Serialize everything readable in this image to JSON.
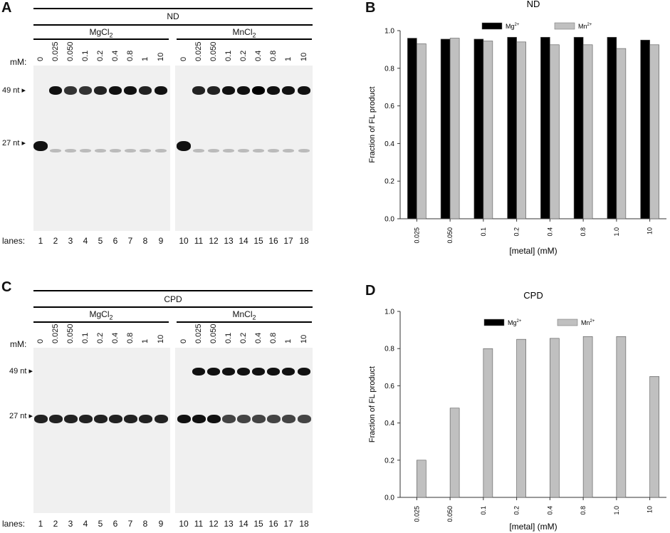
{
  "panels": {
    "A": {
      "letter": "A",
      "title": "ND",
      "group_left": "MgCl",
      "group_right": "MnCl",
      "sub": "2",
      "mm_label": "mM:",
      "concentrations_left": [
        "0",
        "0.025",
        "0.050",
        "0.1",
        "0.2",
        "0.4",
        "0.8",
        "1",
        "10"
      ],
      "concentrations_right": [
        "0",
        "0.025",
        "0.050",
        "0.1",
        "0.2",
        "0.4",
        "0.8",
        "1",
        "10"
      ],
      "marker_top": "49 nt",
      "marker_bottom": "27 nt",
      "lanes_label": "lanes:",
      "lanes_left": [
        "1",
        "2",
        "3",
        "4",
        "5",
        "6",
        "7",
        "8",
        "9"
      ],
      "lanes_right": [
        "10",
        "11",
        "12",
        "13",
        "14",
        "15",
        "16",
        "17",
        "18"
      ]
    },
    "C": {
      "letter": "C",
      "title": "CPD",
      "group_left": "MgCl",
      "group_right": "MnCl",
      "sub": "2",
      "mm_label": "mM:",
      "concentrations_left": [
        "0",
        "0.025",
        "0.050",
        "0.1",
        "0.2",
        "0.4",
        "0.8",
        "1",
        "10"
      ],
      "concentrations_right": [
        "0",
        "0.025",
        "0.050",
        "0.1",
        "0.2",
        "0.4",
        "0.8",
        "1",
        "10"
      ],
      "marker_top": "49 nt",
      "marker_bottom": "27 nt",
      "lanes_label": "lanes:",
      "lanes_left": [
        "1",
        "2",
        "3",
        "4",
        "5",
        "6",
        "7",
        "8",
        "9"
      ],
      "lanes_right": [
        "10",
        "11",
        "12",
        "13",
        "14",
        "15",
        "16",
        "17",
        "18"
      ]
    },
    "B": {
      "letter": "B"
    },
    "D": {
      "letter": "D"
    }
  },
  "chart_data": [
    {
      "type": "bar",
      "title": "ND",
      "xlabel": "[metal] (mM)",
      "ylabel": "Fraction of FL product",
      "categories": [
        "0.025",
        "0.050",
        "0.1",
        "0.2",
        "0.4",
        "0.8",
        "1.0",
        "10"
      ],
      "yticks": [
        "0.0",
        "0.2",
        "0.4",
        "0.6",
        "0.8",
        "1.0"
      ],
      "ylim": [
        0,
        1.0
      ],
      "legend": "top",
      "series": [
        {
          "name": "Mg",
          "sup": "2+",
          "color": "#000000",
          "values": [
            0.96,
            0.955,
            0.955,
            0.965,
            0.965,
            0.965,
            0.965,
            0.95
          ]
        },
        {
          "name": "Mn",
          "sup": "2+",
          "color": "#c0c0c0",
          "values": [
            0.93,
            0.96,
            0.945,
            0.94,
            0.925,
            0.925,
            0.905,
            0.925
          ]
        }
      ]
    },
    {
      "type": "bar",
      "title": "CPD",
      "xlabel": "[metal] (mM)",
      "ylabel": "Fraction of FL product",
      "categories": [
        "0.025",
        "0.050",
        "0.1",
        "0.2",
        "0.4",
        "0.8",
        "1.0",
        "10"
      ],
      "yticks": [
        "0.0",
        "0.2",
        "0.4",
        "0.6",
        "0.8",
        "1.0"
      ],
      "ylim": [
        0,
        1.0
      ],
      "legend": "top",
      "series": [
        {
          "name": "Mg",
          "sup": "2+",
          "color": "#000000",
          "values": [
            0,
            0,
            0,
            0,
            0,
            0,
            0,
            0
          ]
        },
        {
          "name": "Mn",
          "sup": "2+",
          "color": "#c0c0c0",
          "values": [
            0.2,
            0.48,
            0.8,
            0.85,
            0.855,
            0.865,
            0.865,
            0.65
          ]
        }
      ]
    }
  ]
}
